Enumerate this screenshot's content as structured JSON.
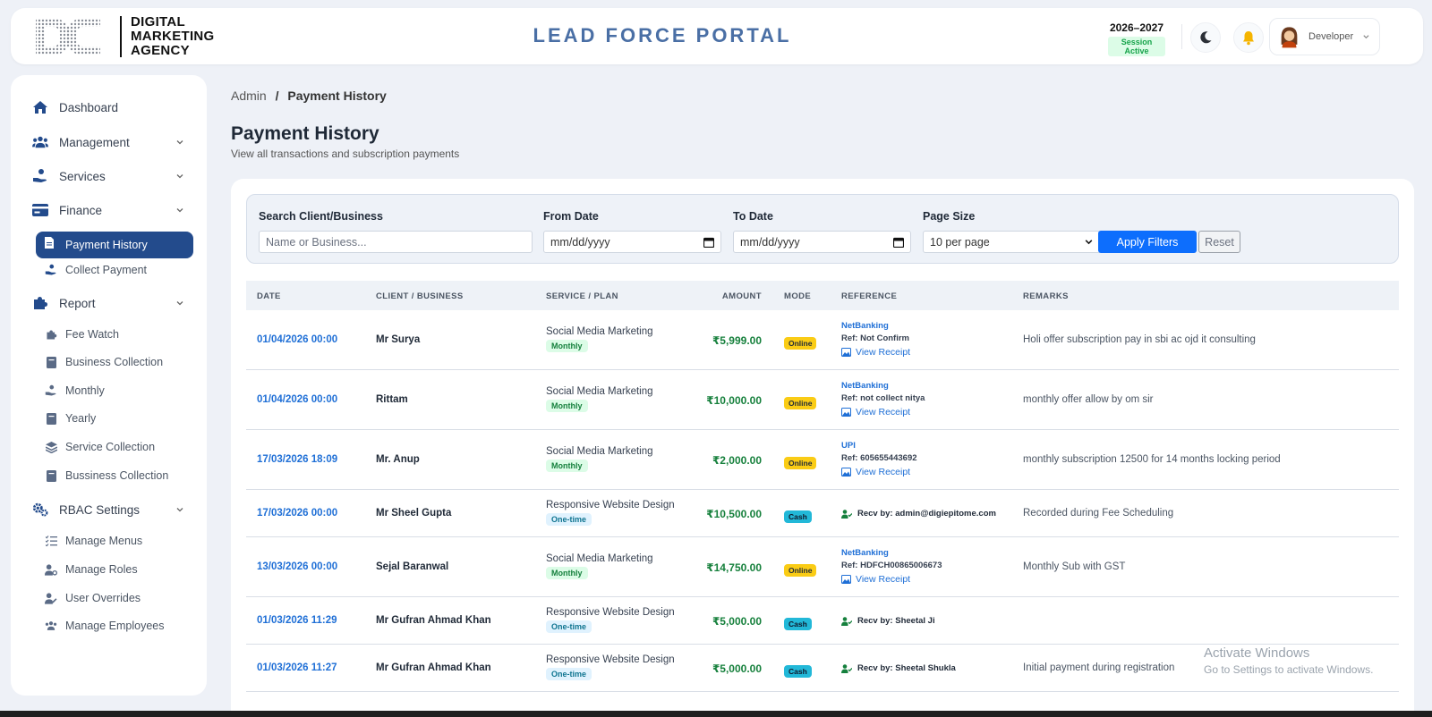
{
  "brand": {
    "line1": "DIGITAL",
    "line2": "MARKETING",
    "line3": "AGENCY",
    "portal_title": "LEAD FORCE PORTAL"
  },
  "session": {
    "year": "2026–2027",
    "status": "Session Active"
  },
  "user": {
    "name": "Developer"
  },
  "sidebar": {
    "dashboard": "Dashboard",
    "management": "Management",
    "services": "Services",
    "finance": "Finance",
    "payment_history": "Payment History",
    "collect_payment": "Collect Payment",
    "report": "Report",
    "fee_watch": "Fee Watch",
    "business_collection": "Business Collection",
    "monthly": "Monthly",
    "yearly": "Yearly",
    "service_collection": "Service Collection",
    "bussiness_collection": "Bussiness Collection",
    "rbac_settings": "RBAC Settings",
    "manage_menus": "Manage Menus",
    "manage_roles": "Manage Roles",
    "user_overrides": "User Overrides",
    "manage_employees": "Manage Employees"
  },
  "breadcrumb": {
    "parent": "Admin",
    "separator": "/",
    "current": "Payment History"
  },
  "page": {
    "title": "Payment History",
    "subtitle": "View all transactions and subscription payments"
  },
  "filters": {
    "search_label": "Search Client/Business",
    "search_placeholder": "Name or Business...",
    "from_label": "From Date",
    "from_value": "mm/dd/yyyy",
    "to_label": "To Date",
    "to_value": "mm/dd/yyyy",
    "page_size_label": "Page Size",
    "page_size_value": "10 per page",
    "apply": "Apply Filters",
    "reset": "Reset"
  },
  "table": {
    "headers": {
      "date": "DATE",
      "client": "CLIENT / BUSINESS",
      "service": "SERVICE / PLAN",
      "amount": "AMOUNT",
      "mode": "MODE",
      "reference": "REFERENCE",
      "remarks": "REMARKS"
    },
    "rows": [
      {
        "date": "01/04/2026 00:00",
        "client": "Mr Surya",
        "service": "Social Media Marketing",
        "plan": "Monthly",
        "amount": "₹5,999.00",
        "mode": "Online",
        "ref_method": "NetBanking",
        "ref_num": "Ref: Not Confirm",
        "receipt": "View Receipt",
        "remarks": "Holi offer subscription pay in sbi ac ojd it consulting"
      },
      {
        "date": "01/04/2026 00:00",
        "client": "Rittam",
        "service": "Social Media Marketing",
        "plan": "Monthly",
        "amount": "₹10,000.00",
        "mode": "Online",
        "ref_method": "NetBanking",
        "ref_num": "Ref: not collect nitya",
        "receipt": "View Receipt",
        "remarks": "monthly offer allow by om sir"
      },
      {
        "date": "17/03/2026 18:09",
        "client": "Mr. Anup",
        "service": "Social Media Marketing",
        "plan": "Monthly",
        "amount": "₹2,000.00",
        "mode": "Online",
        "ref_method": "UPI",
        "ref_num": "Ref: 605655443692",
        "receipt": "View Receipt",
        "remarks": "monthly subscription 12500 for 14 months locking period"
      },
      {
        "date": "17/03/2026 00:00",
        "client": "Mr Sheel Gupta",
        "service": "Responsive Website Design",
        "plan": "One-time",
        "amount": "₹10,500.00",
        "mode": "Cash",
        "recv": "Recv by: admin@digiepitome.com",
        "remarks": "Recorded during Fee Scheduling"
      },
      {
        "date": "13/03/2026 00:00",
        "client": "Sejal Baranwal",
        "service": "Social Media Marketing",
        "plan": "Monthly",
        "amount": "₹14,750.00",
        "mode": "Online",
        "ref_method": "NetBanking",
        "ref_num": "Ref: HDFCH00865006673",
        "receipt": "View Receipt",
        "remarks": "Monthly Sub with GST"
      },
      {
        "date": "01/03/2026 11:29",
        "client": "Mr Gufran Ahmad Khan",
        "service": "Responsive Website Design",
        "plan": "One-time",
        "amount": "₹5,000.00",
        "mode": "Cash",
        "recv": "Recv by: Sheetal Ji",
        "remarks": ""
      },
      {
        "date": "01/03/2026 11:27",
        "client": "Mr Gufran Ahmad Khan",
        "service": "Responsive Website Design",
        "plan": "One-time",
        "amount": "₹5,000.00",
        "mode": "Cash",
        "recv": "Recv by: Sheetal Shukla",
        "remarks": "Initial payment during registration"
      }
    ]
  },
  "watermark": {
    "line1": "Activate Windows",
    "line2": "Go to Settings to activate Windows."
  }
}
